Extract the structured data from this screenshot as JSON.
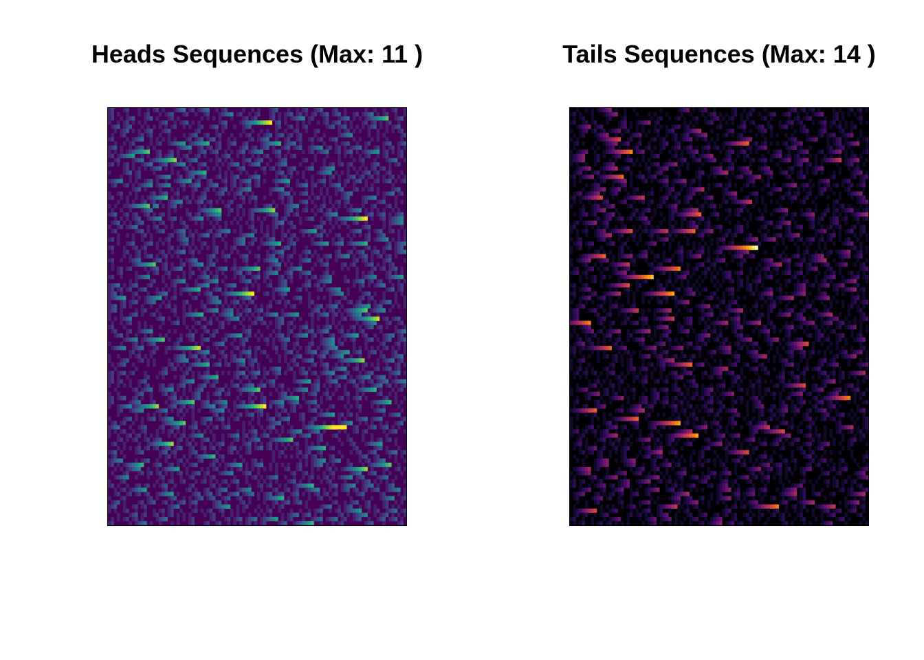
{
  "chart_data": [
    {
      "type": "heatmap",
      "title": "Heads Sequences (Max: 11 )",
      "max_value": 11,
      "colormap": "viridis",
      "colors": {
        "low": "#440154",
        "mid": "#21908d",
        "high": "#fde725"
      },
      "xlabel": "",
      "ylabel": "",
      "axes_visible": false,
      "grid": false,
      "highlight_runs": [
        {
          "row": 3,
          "col": 54,
          "value": 11
        },
        {
          "row": 12,
          "col": 22,
          "value": 9
        },
        {
          "row": 23,
          "col": 13,
          "value": 8
        },
        {
          "row": 24,
          "col": 55,
          "value": 9
        },
        {
          "row": 38,
          "col": 50,
          "value": 8
        },
        {
          "row": 44,
          "col": 48,
          "value": 11
        },
        {
          "row": 57,
          "col": 30,
          "value": 10
        },
        {
          "row": 71,
          "col": 16,
          "value": 9
        },
        {
          "row": 71,
          "col": 52,
          "value": 11
        },
        {
          "row": 75,
          "col": 25,
          "value": 8
        }
      ]
    },
    {
      "type": "heatmap",
      "title": "Tails Sequences (Max: 14 )",
      "max_value": 14,
      "colormap": "inferno",
      "colors": {
        "low": "#000004",
        "mid": "#bb3754",
        "high": "#fcffa4"
      },
      "xlabel": "",
      "ylabel": "",
      "axes_visible": false,
      "grid": false,
      "highlight_runs": [
        {
          "row": 10,
          "col": 20,
          "value": 10
        },
        {
          "row": 25,
          "col": 43,
          "value": 9
        },
        {
          "row": 29,
          "col": 35,
          "value": 10
        },
        {
          "row": 29,
          "col": 41,
          "value": 9
        },
        {
          "row": 33,
          "col": 62,
          "value": 14
        },
        {
          "row": 38,
          "col": 36,
          "value": 10
        },
        {
          "row": 44,
          "col": 34,
          "value": 11
        },
        {
          "row": 51,
          "col": 6,
          "value": 10
        },
        {
          "row": 57,
          "col": 13,
          "value": 9
        },
        {
          "row": 61,
          "col": 40,
          "value": 9
        }
      ]
    }
  ]
}
